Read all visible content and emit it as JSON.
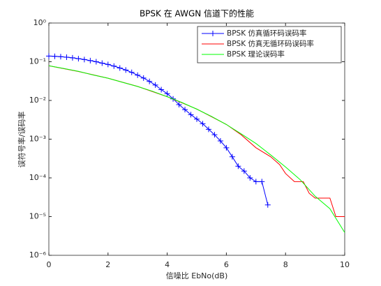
{
  "chart_data": {
    "type": "line",
    "title": "BPSK 在 AWGN 信道下的性能",
    "xlabel": "信噪比 EbNo(dB)",
    "ylabel": "误符号率/误码率",
    "xlim": [
      0,
      10
    ],
    "xticks": [
      0,
      2,
      4,
      6,
      8,
      10
    ],
    "ylim": [
      1e-06,
      1
    ],
    "yscale": "log",
    "yticks": [
      {
        "value": 1,
        "label": "10⁰"
      },
      {
        "value": 0.1,
        "label": "10⁻¹"
      },
      {
        "value": 0.01,
        "label": "10⁻²"
      },
      {
        "value": 0.001,
        "label": "10⁻³"
      },
      {
        "value": 0.0001,
        "label": "10⁻⁴"
      },
      {
        "value": 1e-05,
        "label": "10⁻⁵"
      },
      {
        "value": 1e-06,
        "label": "10⁻⁶"
      }
    ],
    "legend": "upper right",
    "series": [
      {
        "name": "BPSK 仿真循环码误码率",
        "color": "#0000ff",
        "marker": "+",
        "x": [
          0,
          0.2,
          0.4,
          0.6,
          0.8,
          1.0,
          1.2,
          1.4,
          1.6,
          1.8,
          2.0,
          2.2,
          2.4,
          2.6,
          2.8,
          3.0,
          3.2,
          3.4,
          3.6,
          3.8,
          4.0,
          4.2,
          4.4,
          4.6,
          4.8,
          5.0,
          5.2,
          5.4,
          5.6,
          5.8,
          6.0,
          6.2,
          6.4,
          6.6,
          6.8,
          7.0,
          7.2,
          7.4
        ],
        "values": [
          0.14,
          0.138,
          0.135,
          0.131,
          0.126,
          0.12,
          0.114,
          0.107,
          0.1,
          0.092,
          0.085,
          0.077,
          0.069,
          0.061,
          0.053,
          0.045,
          0.038,
          0.031,
          0.025,
          0.019,
          0.015,
          0.011,
          0.0078,
          0.0058,
          0.0043,
          0.0033,
          0.0025,
          0.0018,
          0.0013,
          0.0009,
          0.0006,
          0.00035,
          0.0002,
          0.00015,
          0.0001,
          8e-05,
          8e-05,
          2e-05
        ]
      },
      {
        "name": "BPSK 仿真无循环码误码率",
        "color": "#ff0000",
        "x": [
          0,
          1,
          2,
          3,
          4,
          5,
          6,
          6.5,
          7,
          7.5,
          7.8,
          8,
          8.3,
          8.6,
          8.8,
          9,
          9.5,
          9.7,
          10
        ],
        "values": [
          0.079,
          0.056,
          0.0375,
          0.023,
          0.0125,
          0.006,
          0.0024,
          0.0013,
          0.0006,
          0.00035,
          0.00022,
          0.00013,
          8e-05,
          8e-05,
          4e-05,
          3e-05,
          3e-05,
          1e-05,
          1e-05
        ]
      },
      {
        "name": "BPSK 理论误码率",
        "color": "#00ff00",
        "x": [
          0,
          0.5,
          1,
          1.5,
          2,
          2.5,
          3,
          3.5,
          4,
          4.5,
          5,
          5.5,
          6,
          6.5,
          7,
          7.5,
          8,
          8.5,
          9,
          9.5,
          10
        ],
        "values": [
          0.0786,
          0.0671,
          0.0563,
          0.0455,
          0.0375,
          0.0293,
          0.0229,
          0.0173,
          0.0125,
          0.00884,
          0.00595,
          0.00386,
          0.00239,
          0.00137,
          0.000773,
          0.00039,
          0.000191,
          8.9e-05,
          3.36e-05,
          1.6e-05,
          3.87e-06
        ]
      }
    ]
  }
}
